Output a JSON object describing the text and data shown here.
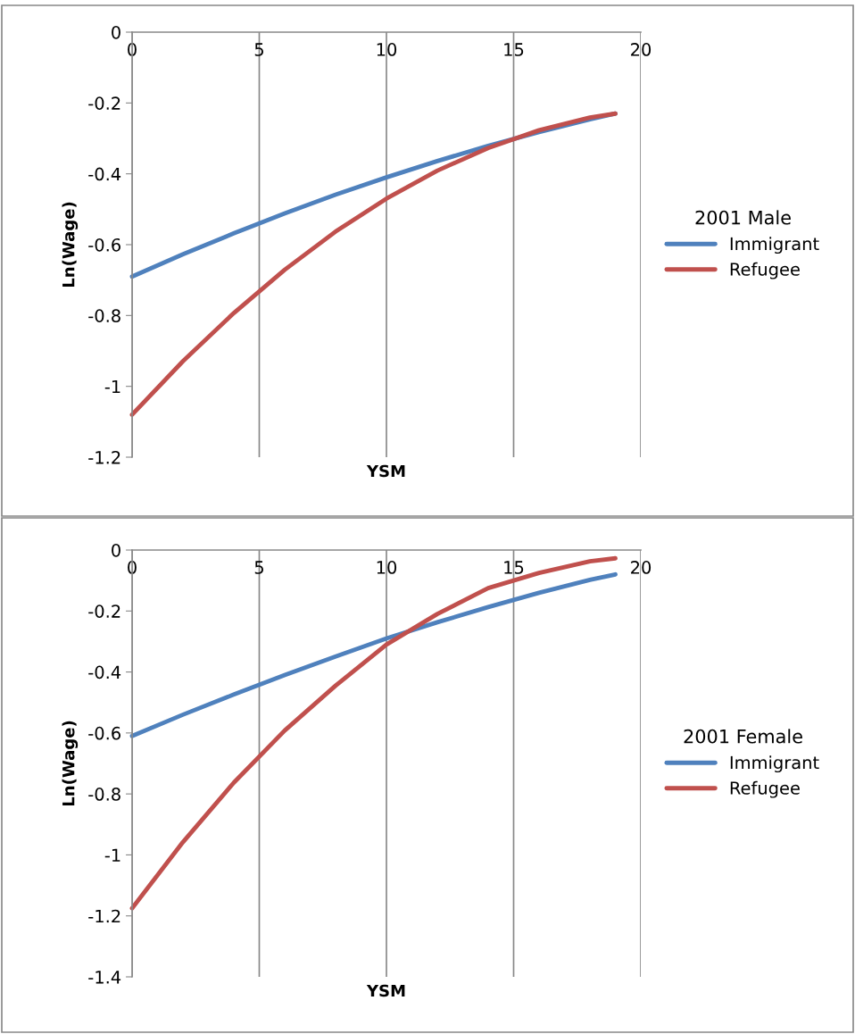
{
  "chart_data": [
    {
      "type": "line",
      "legend_title": "2001 Male",
      "xlabel": "YSM",
      "ylabel": "Ln(Wage)",
      "xlim": [
        0,
        20
      ],
      "xticks": [
        0,
        5,
        10,
        15,
        20
      ],
      "ylim": [
        -1.2,
        0
      ],
      "yticks": [
        {
          "value": 0,
          "label": "0"
        },
        {
          "value": -0.2,
          "label": "-0.2"
        },
        {
          "value": -0.4,
          "label": "-0.4"
        },
        {
          "value": -0.6,
          "label": "-0.6"
        },
        {
          "value": -0.8,
          "label": "-0.8"
        },
        {
          "value": -1,
          "label": "-1"
        },
        {
          "value": -1.2,
          "label": "-1.2"
        }
      ],
      "grid": "x",
      "legend": "right",
      "marker": "none",
      "line_style": "solid",
      "x": [
        0,
        2,
        4,
        6,
        8,
        10,
        12,
        14,
        16,
        18,
        19
      ],
      "series": [
        {
          "name": "Immigrant",
          "color": "#4f81bd",
          "values": [
            -0.69,
            -0.627,
            -0.568,
            -0.512,
            -0.459,
            -0.41,
            -0.364,
            -0.321,
            -0.282,
            -0.246,
            -0.23
          ]
        },
        {
          "name": "Refugee",
          "color": "#c0504d",
          "values": [
            -1.08,
            -0.929,
            -0.793,
            -0.671,
            -0.563,
            -0.47,
            -0.391,
            -0.327,
            -0.277,
            -0.241,
            -0.23
          ]
        }
      ]
    },
    {
      "type": "line",
      "legend_title": "2001 Female",
      "xlabel": "YSM",
      "ylabel": "Ln(Wage)",
      "xlim": [
        0,
        20
      ],
      "xticks": [
        0,
        5,
        10,
        15,
        20
      ],
      "ylim": [
        -1.4,
        0
      ],
      "yticks": [
        {
          "value": 0,
          "label": "0"
        },
        {
          "value": -0.2,
          "label": "-0.2"
        },
        {
          "value": -0.4,
          "label": "-0.4"
        },
        {
          "value": -0.6,
          "label": "-0.6"
        },
        {
          "value": -0.8,
          "label": "-0.8"
        },
        {
          "value": -1,
          "label": "-1"
        },
        {
          "value": -1.2,
          "label": "-1.2"
        },
        {
          "value": -1.4,
          "label": "-1.4"
        }
      ],
      "grid": "x",
      "legend": "right",
      "marker": "none",
      "line_style": "solid",
      "x": [
        0,
        2,
        4,
        6,
        8,
        10,
        12,
        14,
        16,
        18,
        19
      ],
      "series": [
        {
          "name": "Immigrant",
          "color": "#4f81bd",
          "values": [
            -0.61,
            -0.54,
            -0.474,
            -0.41,
            -0.349,
            -0.29,
            -0.237,
            -0.187,
            -0.14,
            -0.098,
            -0.08
          ]
        },
        {
          "name": "Refugee",
          "color": "#c0504d",
          "values": [
            -1.175,
            -0.958,
            -0.763,
            -0.592,
            -0.445,
            -0.31,
            -0.21,
            -0.125,
            -0.075,
            -0.037,
            -0.027
          ]
        }
      ]
    }
  ]
}
